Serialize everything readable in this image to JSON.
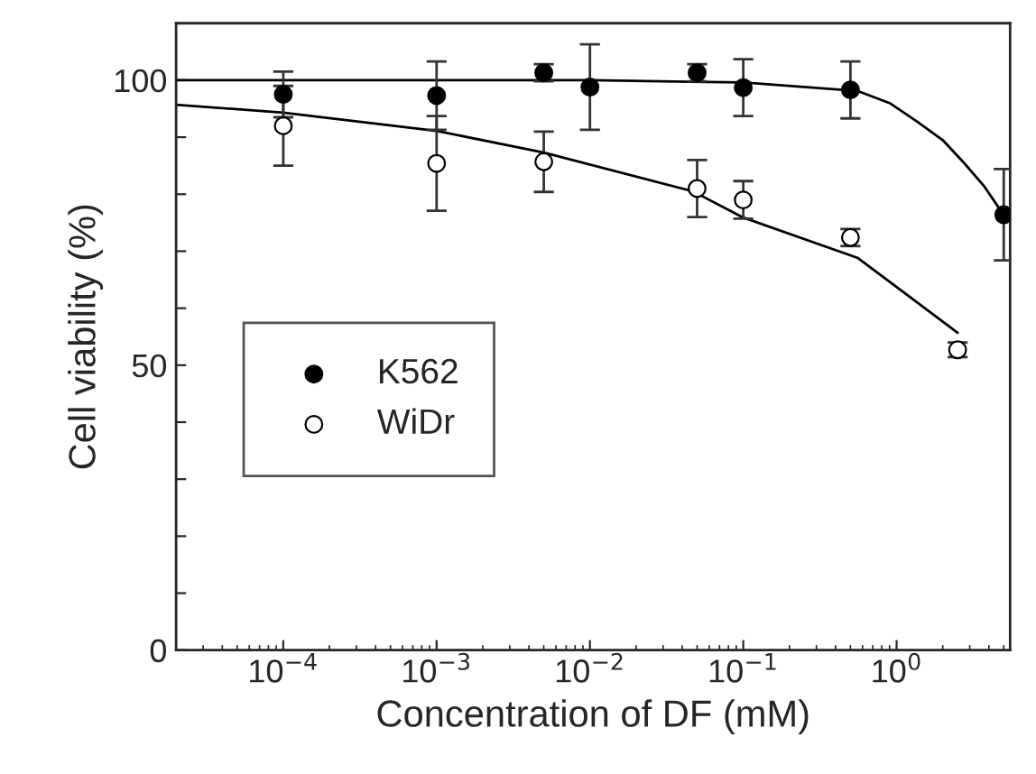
{
  "chart_data": {
    "type": "scatter",
    "xlabel": "Concentration of DF (mM)",
    "ylabel": "Cell viability (%)",
    "log": "x",
    "legend": "center left",
    "grid": false,
    "xlim": [
      2e-05,
      5.5
    ],
    "ylim": [
      0,
      110
    ],
    "xticks": [
      {
        "value": 0.0001,
        "label": "10$^{−4}$"
      },
      {
        "value": 0.001,
        "label": "10$^{−3}$"
      },
      {
        "value": 0.01,
        "label": "10$^{−2}$"
      },
      {
        "value": 0.1,
        "label": "10$^{−1}$"
      },
      {
        "value": 1,
        "label": "10$^{0}$"
      }
    ],
    "yticks": [
      0,
      {
        "value": 10,
        "label": null
      },
      {
        "value": 20,
        "label": null
      },
      {
        "value": 30,
        "label": null
      },
      {
        "value": 40,
        "label": null
      },
      50,
      {
        "value": 60,
        "label": null
      },
      {
        "value": 70,
        "label": null
      },
      {
        "value": 80,
        "label": null
      },
      {
        "value": 90,
        "label": null
      },
      100
    ],
    "series": [
      {
        "name": "K562",
        "marker": "circle",
        "color": "#000000",
        "x": [
          0.0001,
          0.001,
          0.005,
          0.01,
          0.05,
          0.1,
          0.5,
          5
        ],
        "values": [
          97.5,
          97.3,
          101.3,
          98.8,
          101.3,
          98.7,
          98.3,
          76.4
        ],
        "errors": [
          4,
          6,
          1.5,
          7.5,
          1.5,
          5,
          5,
          8
        ]
      },
      {
        "name": "WiDr",
        "marker": "circle",
        "color": "#ffffff",
        "x": [
          0.0001,
          0.001,
          0.005,
          0.05,
          0.1,
          0.5,
          2.5
        ],
        "values": [
          92,
          85.4,
          85.7,
          81,
          79,
          72.4,
          52.7
        ],
        "errors": [
          7,
          8.3,
          5.3,
          5,
          3.3,
          1.5,
          1.3
        ]
      },
      {
        "type": "line",
        "color": "#000000",
        "line_style": "solid",
        "x": [
          2e-05,
          0.001,
          0.01,
          0.1,
          0.56,
          0.9,
          1.35,
          2,
          2.75,
          3.7,
          4.9
        ],
        "values": [
          100,
          100,
          100,
          99.6,
          98.1,
          96,
          92.8,
          89.5,
          85.5,
          81.5,
          76.7
        ]
      },
      {
        "type": "line",
        "color": "#000000",
        "line_style": "solid",
        "x": [
          2e-05,
          0.0001,
          0.001,
          0.005,
          0.047,
          0.1,
          0.56,
          2.5
        ],
        "values": [
          95.7,
          94.3,
          91.1,
          87.3,
          80.5,
          75.9,
          68.8,
          55.7
        ]
      }
    ]
  }
}
